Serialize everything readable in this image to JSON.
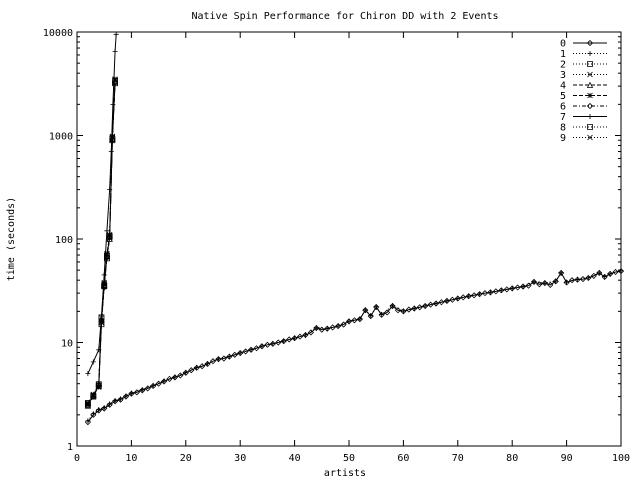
{
  "chart_data": {
    "type": "line",
    "title": "Native Spin Performance for Chiron DD with 2 Events",
    "xlabel": "artists",
    "ylabel": "time (seconds)",
    "xlim": [
      0,
      100
    ],
    "ylim": [
      1,
      10000
    ],
    "yscale": "log",
    "grid": false,
    "legend_position": "top-right",
    "x_ticks": [
      "0",
      "10",
      "20",
      "30",
      "40",
      "50",
      "60",
      "70",
      "80",
      "90",
      "100"
    ],
    "y_ticks": [
      "1",
      "10",
      "100",
      "1000",
      "10000"
    ],
    "series": [
      {
        "name": "0",
        "style": "solid",
        "marker": "diamond",
        "points": [
          [
            2,
            1.7
          ],
          [
            3,
            2.0
          ],
          [
            4,
            2.2
          ],
          [
            5,
            2.3
          ],
          [
            6,
            2.5
          ],
          [
            7,
            2.7
          ],
          [
            8,
            2.8
          ],
          [
            9,
            3.0
          ],
          [
            10,
            3.2
          ],
          [
            11,
            3.3
          ],
          [
            12,
            3.45
          ],
          [
            13,
            3.6
          ],
          [
            14,
            3.8
          ],
          [
            15,
            4.0
          ],
          [
            16,
            4.2
          ],
          [
            17,
            4.45
          ],
          [
            18,
            4.6
          ],
          [
            19,
            4.8
          ],
          [
            20,
            5.1
          ],
          [
            21,
            5.4
          ],
          [
            22,
            5.7
          ],
          [
            23,
            5.9
          ],
          [
            24,
            6.2
          ],
          [
            25,
            6.6
          ],
          [
            26,
            6.9
          ],
          [
            27,
            7.0
          ],
          [
            28,
            7.3
          ],
          [
            29,
            7.6
          ],
          [
            30,
            7.9
          ],
          [
            31,
            8.2
          ],
          [
            32,
            8.5
          ],
          [
            33,
            8.8
          ],
          [
            34,
            9.2
          ],
          [
            35,
            9.5
          ],
          [
            36,
            9.7
          ],
          [
            37,
            10.0
          ],
          [
            38,
            10.3
          ],
          [
            39,
            10.7
          ],
          [
            40,
            11.0
          ],
          [
            41,
            11.4
          ],
          [
            42,
            11.8
          ],
          [
            43,
            12.5
          ],
          [
            44,
            13.8
          ],
          [
            45,
            13.3
          ],
          [
            46,
            13.6
          ],
          [
            47,
            14.0
          ],
          [
            48,
            14.4
          ],
          [
            49,
            14.9
          ],
          [
            50,
            16.0
          ],
          [
            51,
            16.4
          ],
          [
            52,
            16.8
          ],
          [
            53,
            20.5
          ],
          [
            54,
            18.0
          ],
          [
            55,
            22.0
          ],
          [
            56,
            18.5
          ],
          [
            57,
            19.5
          ],
          [
            58,
            22.5
          ],
          [
            59,
            20.5
          ],
          [
            60,
            20.0
          ],
          [
            61,
            20.8
          ],
          [
            62,
            21.3
          ],
          [
            63,
            21.9
          ],
          [
            64,
            22.5
          ],
          [
            65,
            23.2
          ],
          [
            66,
            23.8
          ],
          [
            67,
            24.5
          ],
          [
            68,
            25.2
          ],
          [
            69,
            25.9
          ],
          [
            70,
            26.6
          ],
          [
            71,
            27.3
          ],
          [
            72,
            28.0
          ],
          [
            73,
            28.6
          ],
          [
            74,
            29.3
          ],
          [
            75,
            30.0
          ],
          [
            76,
            30.5
          ],
          [
            77,
            31.2
          ],
          [
            78,
            31.9
          ],
          [
            79,
            32.6
          ],
          [
            80,
            33.3
          ],
          [
            81,
            34.0
          ],
          [
            82,
            34.7
          ],
          [
            83,
            35.4
          ],
          [
            84,
            38.5
          ],
          [
            85,
            36.5
          ],
          [
            86,
            37.5
          ],
          [
            87,
            36.0
          ],
          [
            88,
            39.0
          ],
          [
            89,
            47.0
          ],
          [
            90,
            38.0
          ],
          [
            91,
            40.0
          ],
          [
            92,
            40.5
          ],
          [
            93,
            41.0
          ],
          [
            94,
            42.0
          ],
          [
            95,
            44.0
          ],
          [
            96,
            47.0
          ],
          [
            97,
            43.0
          ],
          [
            98,
            46.0
          ],
          [
            99,
            48.0
          ],
          [
            100,
            49.0
          ]
        ]
      },
      {
        "name": "1",
        "style": "dotted",
        "marker": "plus",
        "points": [
          [
            2,
            1.75
          ],
          [
            3,
            2.05
          ],
          [
            4,
            2.25
          ],
          [
            5,
            2.35
          ],
          [
            6,
            2.55
          ],
          [
            7,
            2.75
          ],
          [
            8,
            2.85
          ],
          [
            9,
            3.05
          ],
          [
            10,
            3.25
          ],
          [
            12,
            3.5
          ],
          [
            14,
            3.85
          ],
          [
            16,
            4.25
          ],
          [
            18,
            4.65
          ],
          [
            20,
            5.15
          ],
          [
            22,
            5.75
          ],
          [
            24,
            6.25
          ],
          [
            26,
            6.95
          ],
          [
            28,
            7.35
          ],
          [
            30,
            7.95
          ],
          [
            32,
            8.55
          ],
          [
            34,
            9.25
          ],
          [
            36,
            9.75
          ],
          [
            38,
            10.35
          ],
          [
            40,
            11.05
          ],
          [
            42,
            11.85
          ],
          [
            44,
            13.9
          ],
          [
            46,
            13.65
          ],
          [
            48,
            14.45
          ],
          [
            50,
            16.1
          ],
          [
            52,
            16.9
          ],
          [
            53,
            20.7
          ],
          [
            54,
            18.1
          ],
          [
            55,
            22.2
          ],
          [
            56,
            18.6
          ],
          [
            58,
            22.7
          ],
          [
            60,
            20.1
          ],
          [
            62,
            21.4
          ],
          [
            64,
            22.6
          ],
          [
            66,
            23.9
          ],
          [
            68,
            25.3
          ],
          [
            70,
            26.7
          ],
          [
            72,
            28.1
          ],
          [
            74,
            29.4
          ],
          [
            76,
            30.6
          ],
          [
            78,
            32.0
          ],
          [
            80,
            33.4
          ],
          [
            82,
            34.8
          ],
          [
            84,
            38.7
          ],
          [
            86,
            37.6
          ],
          [
            88,
            39.2
          ],
          [
            89,
            47.3
          ],
          [
            90,
            38.2
          ],
          [
            92,
            40.7
          ],
          [
            94,
            42.2
          ],
          [
            96,
            47.2
          ],
          [
            97,
            43.2
          ],
          [
            98,
            46.2
          ],
          [
            100,
            49.2
          ]
        ]
      },
      {
        "name": "2",
        "style": "dotted",
        "marker": "square",
        "points": [
          [
            2,
            2.5
          ],
          [
            3,
            3.0
          ],
          [
            4,
            3.8
          ],
          [
            4.5,
            15.0
          ],
          [
            5,
            35.0
          ],
          [
            5.5,
            65.0
          ],
          [
            6,
            105.0
          ],
          [
            6.5,
            900.0
          ],
          [
            7,
            3200.0
          ]
        ]
      },
      {
        "name": "3",
        "style": "dotted",
        "marker": "cross",
        "points": [
          [
            2,
            2.55
          ],
          [
            3,
            3.05
          ],
          [
            4,
            3.9
          ],
          [
            4.5,
            16.0
          ],
          [
            5,
            38.0
          ],
          [
            5.5,
            70.0
          ],
          [
            6,
            110.0
          ],
          [
            6.5,
            950.0
          ],
          [
            7,
            3400.0
          ]
        ]
      },
      {
        "name": "4",
        "style": "dashed",
        "marker": "triangle",
        "points": [
          [
            2,
            2.45
          ],
          [
            3,
            3.1
          ],
          [
            4,
            4.0
          ],
          [
            4.5,
            17.0
          ],
          [
            5,
            36.0
          ],
          [
            5.5,
            68.0
          ],
          [
            6,
            100.0
          ],
          [
            6.5,
            920.0
          ],
          [
            7,
            3300.0
          ]
        ]
      },
      {
        "name": "5",
        "style": "dashed",
        "marker": "star",
        "points": [
          [
            2,
            2.6
          ],
          [
            3,
            3.15
          ],
          [
            4,
            3.7
          ],
          [
            4.5,
            15.5
          ],
          [
            5,
            37.0
          ],
          [
            5.5,
            72.0
          ],
          [
            6,
            108.0
          ],
          [
            6.5,
            980.0
          ],
          [
            7,
            3500.0
          ]
        ]
      },
      {
        "name": "6",
        "style": "dash-dot",
        "marker": "diamond",
        "points": [
          [
            2,
            2.5
          ],
          [
            3,
            3.0
          ],
          [
            4,
            3.85
          ],
          [
            4.5,
            16.5
          ],
          [
            5,
            34.0
          ],
          [
            5.5,
            66.0
          ],
          [
            6,
            104.0
          ],
          [
            6.5,
            910.0
          ],
          [
            7,
            3250.0
          ]
        ]
      },
      {
        "name": "7",
        "style": "solid",
        "marker": "plus",
        "points": [
          [
            2,
            5.0
          ],
          [
            3,
            6.5
          ],
          [
            4,
            8.5
          ],
          [
            4.5,
            18.0
          ],
          [
            5,
            45.0
          ],
          [
            5.5,
            120.0
          ],
          [
            6,
            300.0
          ],
          [
            6.3,
            700.0
          ],
          [
            6.6,
            2000.0
          ],
          [
            7,
            6500.0
          ],
          [
            7.2,
            9500.0
          ]
        ]
      },
      {
        "name": "8",
        "style": "dotted",
        "marker": "square",
        "points": [
          [
            2,
            2.6
          ],
          [
            3,
            3.05
          ],
          [
            4,
            3.95
          ],
          [
            4.5,
            17.5
          ],
          [
            5,
            35.5
          ],
          [
            5.5,
            69.0
          ],
          [
            6,
            106.0
          ],
          [
            6.5,
            930.0
          ],
          [
            7,
            3350.0
          ]
        ]
      },
      {
        "name": "9",
        "style": "dotted",
        "marker": "cross",
        "points": [
          [
            2,
            2.55
          ],
          [
            3,
            3.1
          ],
          [
            4,
            3.75
          ],
          [
            4.5,
            16.2
          ],
          [
            5,
            36.5
          ],
          [
            5.5,
            67.0
          ],
          [
            6,
            102.0
          ],
          [
            6.5,
            960.0
          ],
          [
            7,
            3450.0
          ]
        ]
      }
    ]
  }
}
